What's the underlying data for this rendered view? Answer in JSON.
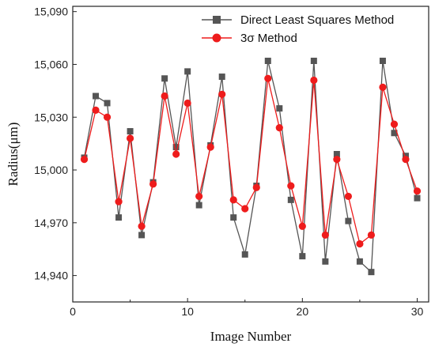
{
  "chart_data": {
    "type": "line",
    "title": "",
    "xlabel": "Image Number",
    "ylabel": "Radius(μm)",
    "xlim": [
      0,
      31
    ],
    "ylim": [
      14925,
      15093
    ],
    "x_ticks": [
      0,
      10,
      20,
      30
    ],
    "x_tick_labels": [
      "0",
      "10",
      "20",
      "30"
    ],
    "y_ticks": [
      14940,
      14970,
      15000,
      15030,
      15060,
      15090
    ],
    "y_tick_labels": [
      "14,940",
      "14,970",
      "15,000",
      "15,030",
      "15,060",
      "15,090"
    ],
    "grid": false,
    "legend_position": "top-right",
    "x": [
      1,
      2,
      3,
      4,
      5,
      6,
      7,
      8,
      9,
      10,
      11,
      12,
      13,
      14,
      15,
      16,
      17,
      18,
      19,
      20,
      21,
      22,
      23,
      24,
      25,
      26,
      27,
      28,
      29,
      30
    ],
    "series": [
      {
        "name": "Direct Least Squares Method",
        "color": "#555555",
        "marker": "square",
        "values": [
          15007,
          15042,
          15038,
          14973,
          15022,
          14963,
          14993,
          15052,
          15013,
          15056,
          14980,
          15014,
          15053,
          14973,
          14952,
          14991,
          15062,
          15035,
          14983,
          14951,
          15062,
          14948,
          15009,
          14971,
          14948,
          14942,
          15062,
          15021,
          15008,
          14984
        ]
      },
      {
        "name": "3σ  Method",
        "color": "#ee1c1c",
        "marker": "circle",
        "values": [
          15006,
          15034,
          15030,
          14982,
          15018,
          14968,
          14992,
          15042,
          15009,
          15038,
          14985,
          15013,
          15043,
          14983,
          14978,
          14990,
          15052,
          15024,
          14991,
          14968,
          15051,
          14963,
          15006,
          14985,
          14958,
          14963,
          15047,
          15026,
          15006,
          14988
        ]
      }
    ]
  }
}
